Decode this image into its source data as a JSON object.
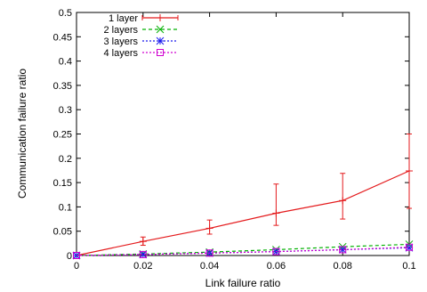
{
  "chart_data": {
    "type": "line",
    "title": "",
    "xlabel": "Link failure ratio",
    "ylabel": "Communication failure ratio",
    "xlim": [
      0,
      0.1
    ],
    "ylim": [
      0,
      0.5
    ],
    "x_ticks": [
      0,
      0.02,
      0.04,
      0.06,
      0.08,
      0.1
    ],
    "x_tick_labels": [
      "0",
      "0.02",
      "0.04",
      "0.06",
      "0.08",
      "0.1"
    ],
    "y_ticks": [
      0,
      0.05,
      0.1,
      0.15,
      0.2,
      0.25,
      0.3,
      0.35,
      0.4,
      0.45,
      0.5
    ],
    "y_tick_labels": [
      "0",
      "0.05",
      "0.1",
      "0.15",
      "0.2",
      "0.25",
      "0.3",
      "0.35",
      "0.4",
      "0.45",
      "0.5"
    ],
    "grid": false,
    "legend_position": "top-left",
    "x": [
      0,
      0.02,
      0.04,
      0.06,
      0.08,
      0.1
    ],
    "series": [
      {
        "name": "1 layer",
        "color": "#e41a1c",
        "marker": "plus",
        "dash": "solid",
        "values": [
          0,
          0.029,
          0.056,
          0.087,
          0.113,
          0.174
        ],
        "err_low": [
          0,
          0.021,
          0.044,
          0.062,
          0.075,
          0.097
        ],
        "err_high": [
          0,
          0.038,
          0.073,
          0.147,
          0.169,
          0.25
        ]
      },
      {
        "name": "2 layers",
        "color": "#00b000",
        "marker": "x",
        "dash": "dashed",
        "values": [
          0,
          0.003,
          0.007,
          0.012,
          0.018,
          0.023
        ]
      },
      {
        "name": "3 layers",
        "color": "#1a1aee",
        "marker": "star",
        "dash": "dotted",
        "values": [
          0,
          0.002,
          0.005,
          0.008,
          0.012,
          0.016
        ]
      },
      {
        "name": "4 layers",
        "color": "#d000d0",
        "marker": "square",
        "dash": "dotted",
        "values": [
          0,
          0.002,
          0.005,
          0.008,
          0.012,
          0.017
        ]
      }
    ]
  }
}
